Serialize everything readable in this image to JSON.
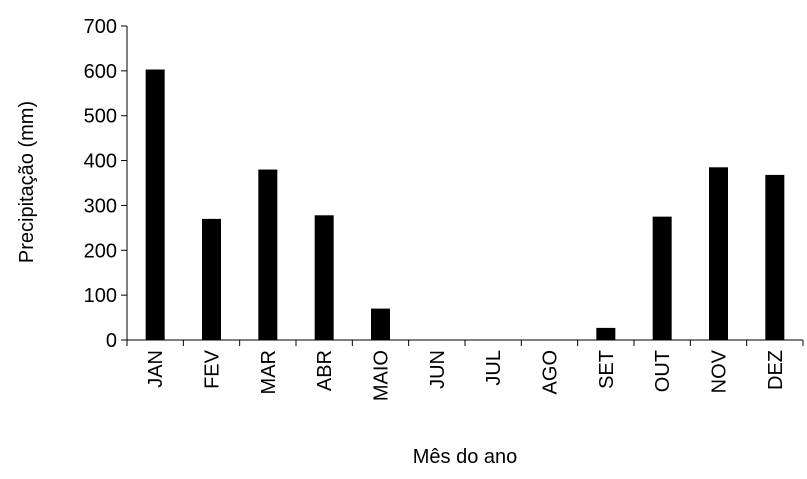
{
  "chart_data": {
    "type": "bar",
    "title": "",
    "xlabel": "Mês do ano",
    "ylabel": "Precipitação (mm)",
    "categories": [
      "JAN",
      "FEV",
      "MAR",
      "ABR",
      "MAIO",
      "JUN",
      "JUL",
      "AGO",
      "SET",
      "OUT",
      "NOV",
      "DEZ"
    ],
    "values": [
      603,
      270,
      380,
      278,
      70,
      0,
      0,
      0,
      27,
      275,
      385,
      368
    ],
    "ylim": [
      0,
      700
    ],
    "yticks": [
      0,
      100,
      200,
      300,
      400,
      500,
      600,
      700
    ],
    "grid": false,
    "legend": "none",
    "bar_color": "#000000"
  }
}
